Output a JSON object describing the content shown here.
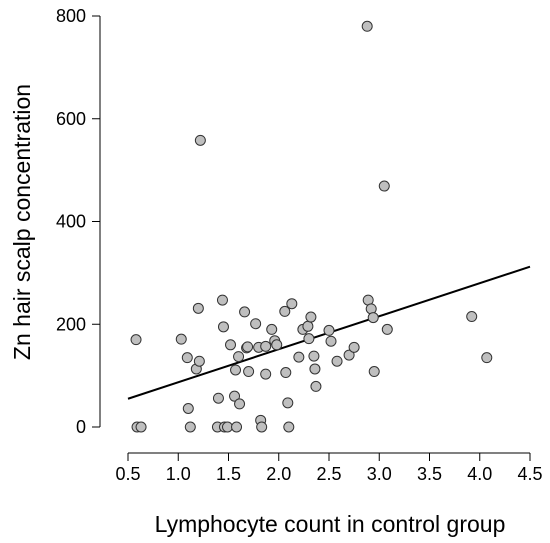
{
  "chart_data": {
    "type": "scatter",
    "title": "",
    "xlabel": "Lymphocyte count in control group",
    "ylabel": "Zn hair scalp concentration",
    "xlim": [
      0.5,
      4.5
    ],
    "ylim": [
      0,
      800
    ],
    "x_ticks": [
      "0.5",
      "1.0",
      "1.5",
      "2.0",
      "2.5",
      "3.0",
      "3.5",
      "4.0",
      "4.5"
    ],
    "y_ticks": [
      "0",
      "200",
      "400",
      "600",
      "800"
    ],
    "grid": false,
    "legend": "none",
    "point_fill": "#bfbfbf",
    "point_stroke": "#333333",
    "line_color": "#000000",
    "points": [
      {
        "x": 0.58,
        "y": 170
      },
      {
        "x": 0.59,
        "y": 0
      },
      {
        "x": 0.63,
        "y": 0
      },
      {
        "x": 1.03,
        "y": 171
      },
      {
        "x": 1.09,
        "y": 135
      },
      {
        "x": 1.1,
        "y": 36
      },
      {
        "x": 1.12,
        "y": 0
      },
      {
        "x": 1.18,
        "y": 113
      },
      {
        "x": 1.2,
        "y": 231
      },
      {
        "x": 1.21,
        "y": 128
      },
      {
        "x": 1.22,
        "y": 558
      },
      {
        "x": 1.39,
        "y": 0
      },
      {
        "x": 1.4,
        "y": 56
      },
      {
        "x": 1.44,
        "y": 247
      },
      {
        "x": 1.45,
        "y": 195
      },
      {
        "x": 1.46,
        "y": 0
      },
      {
        "x": 1.49,
        "y": 0
      },
      {
        "x": 1.52,
        "y": 160
      },
      {
        "x": 1.56,
        "y": 60
      },
      {
        "x": 1.57,
        "y": 111
      },
      {
        "x": 1.58,
        "y": 0
      },
      {
        "x": 1.6,
        "y": 137
      },
      {
        "x": 1.61,
        "y": 45
      },
      {
        "x": 1.66,
        "y": 224
      },
      {
        "x": 1.68,
        "y": 154
      },
      {
        "x": 1.69,
        "y": 156
      },
      {
        "x": 1.7,
        "y": 108
      },
      {
        "x": 1.77,
        "y": 201
      },
      {
        "x": 1.8,
        "y": 155
      },
      {
        "x": 1.82,
        "y": 13
      },
      {
        "x": 1.83,
        "y": 0
      },
      {
        "x": 1.87,
        "y": 103
      },
      {
        "x": 1.87,
        "y": 157
      },
      {
        "x": 1.93,
        "y": 190
      },
      {
        "x": 1.96,
        "y": 168
      },
      {
        "x": 1.98,
        "y": 160
      },
      {
        "x": 2.06,
        "y": 225
      },
      {
        "x": 2.07,
        "y": 106
      },
      {
        "x": 2.09,
        "y": 47
      },
      {
        "x": 2.1,
        "y": 0
      },
      {
        "x": 2.13,
        "y": 240
      },
      {
        "x": 2.2,
        "y": 136
      },
      {
        "x": 2.24,
        "y": 190
      },
      {
        "x": 2.29,
        "y": 196
      },
      {
        "x": 2.3,
        "y": 172
      },
      {
        "x": 2.32,
        "y": 214
      },
      {
        "x": 2.35,
        "y": 138
      },
      {
        "x": 2.36,
        "y": 113
      },
      {
        "x": 2.37,
        "y": 79
      },
      {
        "x": 2.5,
        "y": 188
      },
      {
        "x": 2.52,
        "y": 167
      },
      {
        "x": 2.58,
        "y": 128
      },
      {
        "x": 2.7,
        "y": 140
      },
      {
        "x": 2.75,
        "y": 155
      },
      {
        "x": 2.88,
        "y": 780
      },
      {
        "x": 2.89,
        "y": 247
      },
      {
        "x": 2.92,
        "y": 230
      },
      {
        "x": 2.94,
        "y": 213
      },
      {
        "x": 2.95,
        "y": 108
      },
      {
        "x": 3.05,
        "y": 469
      },
      {
        "x": 3.08,
        "y": 190
      },
      {
        "x": 3.92,
        "y": 215
      },
      {
        "x": 4.07,
        "y": 135
      }
    ],
    "fit_line": {
      "x": [
        0.5,
        4.5
      ],
      "y": [
        55,
        312
      ]
    }
  }
}
